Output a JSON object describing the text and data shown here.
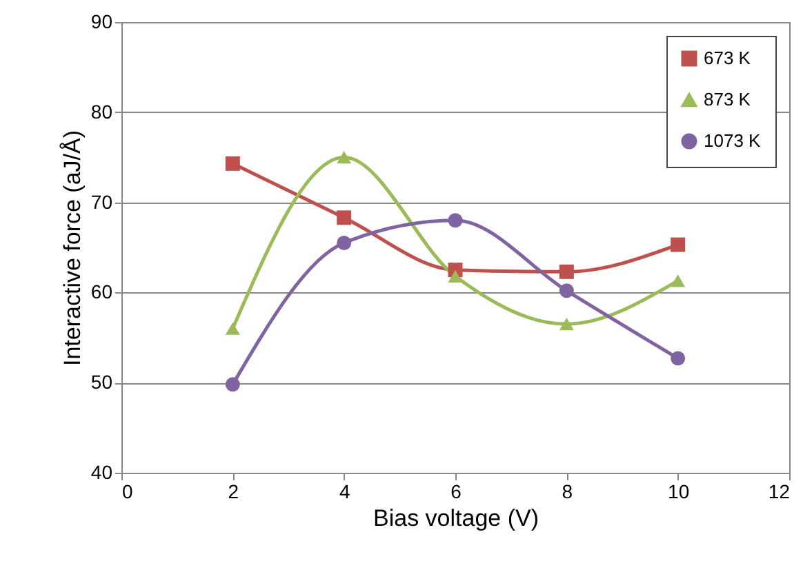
{
  "chart_data": {
    "type": "line",
    "xlabel": "Bias voltage (V)",
    "ylabel": "Interactive force (aJ/Å)",
    "x": [
      2,
      4,
      6,
      8,
      10
    ],
    "series": [
      {
        "name": "673 K",
        "color": "#c0504d",
        "marker": "square",
        "values": [
          74.3,
          68.3,
          62.5,
          62.3,
          65.3
        ]
      },
      {
        "name": "873 K",
        "color": "#9bbb59",
        "marker": "triangle",
        "values": [
          56,
          75,
          61.8,
          56.5,
          61.3
        ]
      },
      {
        "name": "1073 K",
        "color": "#8064a2",
        "marker": "circle",
        "values": [
          49.8,
          65.5,
          68,
          60.2,
          52.7
        ]
      }
    ],
    "xlim": [
      0,
      12
    ],
    "xticks": [
      0,
      2,
      4,
      6,
      8,
      10,
      12
    ],
    "ylim": [
      40,
      90
    ],
    "yticks": [
      40,
      50,
      60,
      70,
      80,
      90
    ],
    "grid": "y",
    "legend": "top right",
    "line_style": "solid"
  }
}
